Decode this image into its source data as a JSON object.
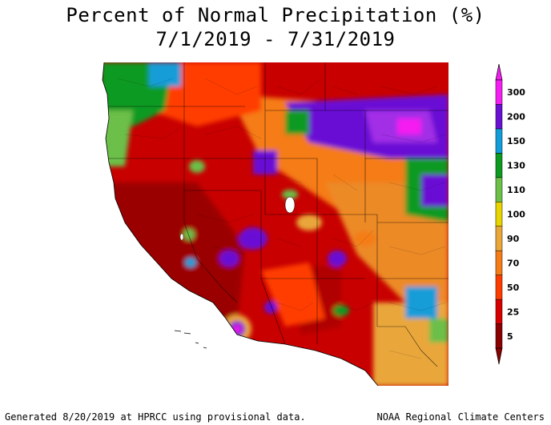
{
  "title": {
    "line1": "Percent of Normal Precipitation (%)",
    "line2": "7/1/2019 - 7/31/2019"
  },
  "legend": {
    "bins": [
      {
        "label": "5",
        "color": "#8b0000"
      },
      {
        "label": "25",
        "color": "#d70000"
      },
      {
        "label": "50",
        "color": "#ff3c00"
      },
      {
        "label": "70",
        "color": "#f57c19"
      },
      {
        "label": "90",
        "color": "#e9a73a"
      },
      {
        "label": "100",
        "color": "#e7d400"
      },
      {
        "label": "110",
        "color": "#6cbf48"
      },
      {
        "label": "130",
        "color": "#0d9a21"
      },
      {
        "label": "150",
        "color": "#129dd8"
      },
      {
        "label": "200",
        "color": "#6a0fd4"
      },
      {
        "label": "300",
        "color": "#f51df2"
      }
    ]
  },
  "footer": {
    "left": "Generated 8/20/2019 at HPRCC using provisional data.",
    "right": "NOAA Regional Climate Centers"
  }
}
